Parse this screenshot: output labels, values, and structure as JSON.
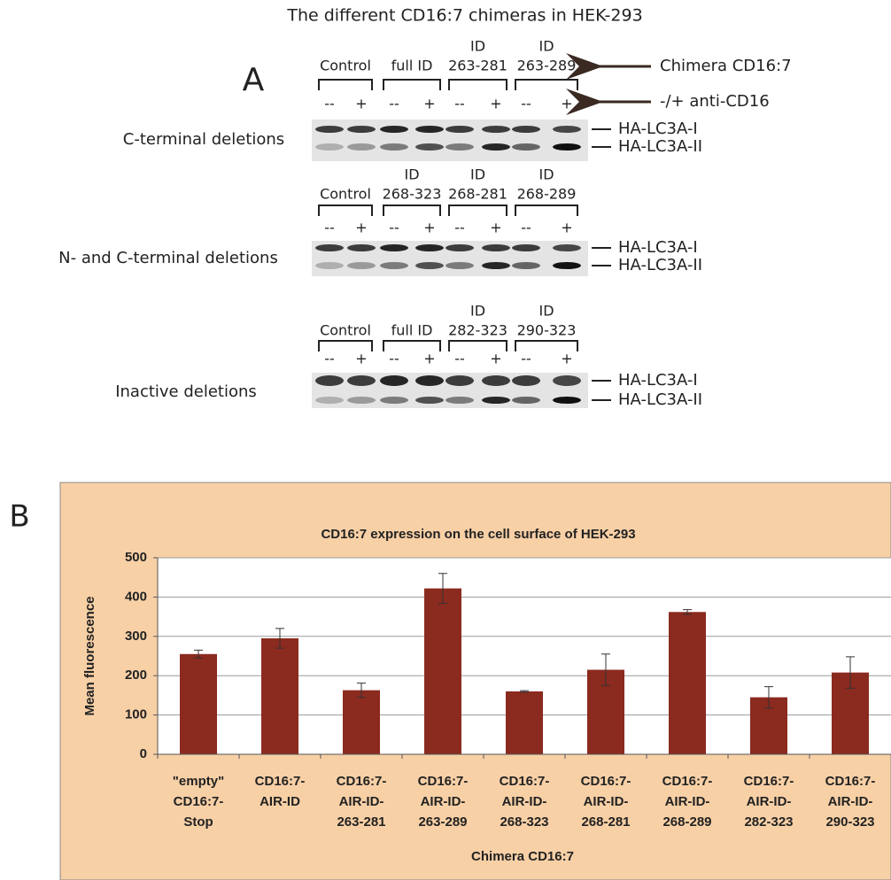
{
  "panel_a": {
    "title": "The different CD16:7 chimeras in HEK-293",
    "label": "A",
    "chimera_label": "Chimera CD16:7",
    "treatment_label": "-/+ anti-CD16",
    "signs": [
      "--",
      "+"
    ],
    "bands": [
      "HA-LC3A-I",
      "HA-LC3A-II"
    ],
    "rows": [
      {
        "label": "C-terminal deletions",
        "groups": [
          [
            "Control"
          ],
          [
            "full ID"
          ],
          [
            "ID",
            "263-281"
          ],
          [
            "ID",
            "263-289"
          ]
        ]
      },
      {
        "label": "N- and C-terminal deletions",
        "groups": [
          [
            "Control"
          ],
          [
            "ID",
            "268-323"
          ],
          [
            "ID",
            "268-281"
          ],
          [
            "ID",
            "268-289"
          ]
        ]
      },
      {
        "label": "Inactive deletions",
        "groups": [
          [
            "Control"
          ],
          [
            "full ID"
          ],
          [
            "ID",
            "282-323"
          ],
          [
            "ID",
            "290-323"
          ]
        ]
      }
    ]
  },
  "panel_b": {
    "label": "B"
  },
  "chart_data": {
    "type": "bar",
    "title": "CD16:7 expression on the cell surface of HEK-293",
    "y_label": "Mean fluorescence",
    "x_label": "Chimera CD16:7",
    "categories": [
      [
        "\"empty\"",
        "CD16:7-",
        "Stop"
      ],
      [
        "CD16:7-",
        "AIR-ID"
      ],
      [
        "CD16:7-",
        "AIR-ID-",
        "263-281"
      ],
      [
        "CD16:7-",
        "AIR-ID-",
        "263-289"
      ],
      [
        "CD16:7-",
        "AIR-ID-",
        "268-323"
      ],
      [
        "CD16:7-",
        "AIR-ID-",
        "268-281"
      ],
      [
        "CD16:7-",
        "AIR-ID-",
        "268-289"
      ],
      [
        "CD16:7-",
        "AIR-ID-",
        "282-323"
      ],
      [
        "CD16:7-",
        "AIR-ID-",
        "290-323"
      ]
    ],
    "values": [
      255,
      295,
      163,
      422,
      160,
      215,
      362,
      145,
      208
    ],
    "errors": [
      10,
      25,
      18,
      38,
      2,
      40,
      6,
      27,
      40
    ],
    "color": "#8b2a1f",
    "ylim": [
      0,
      500
    ],
    "yticks": [
      0,
      100,
      200,
      300,
      400,
      500
    ],
    "grid": true
  }
}
